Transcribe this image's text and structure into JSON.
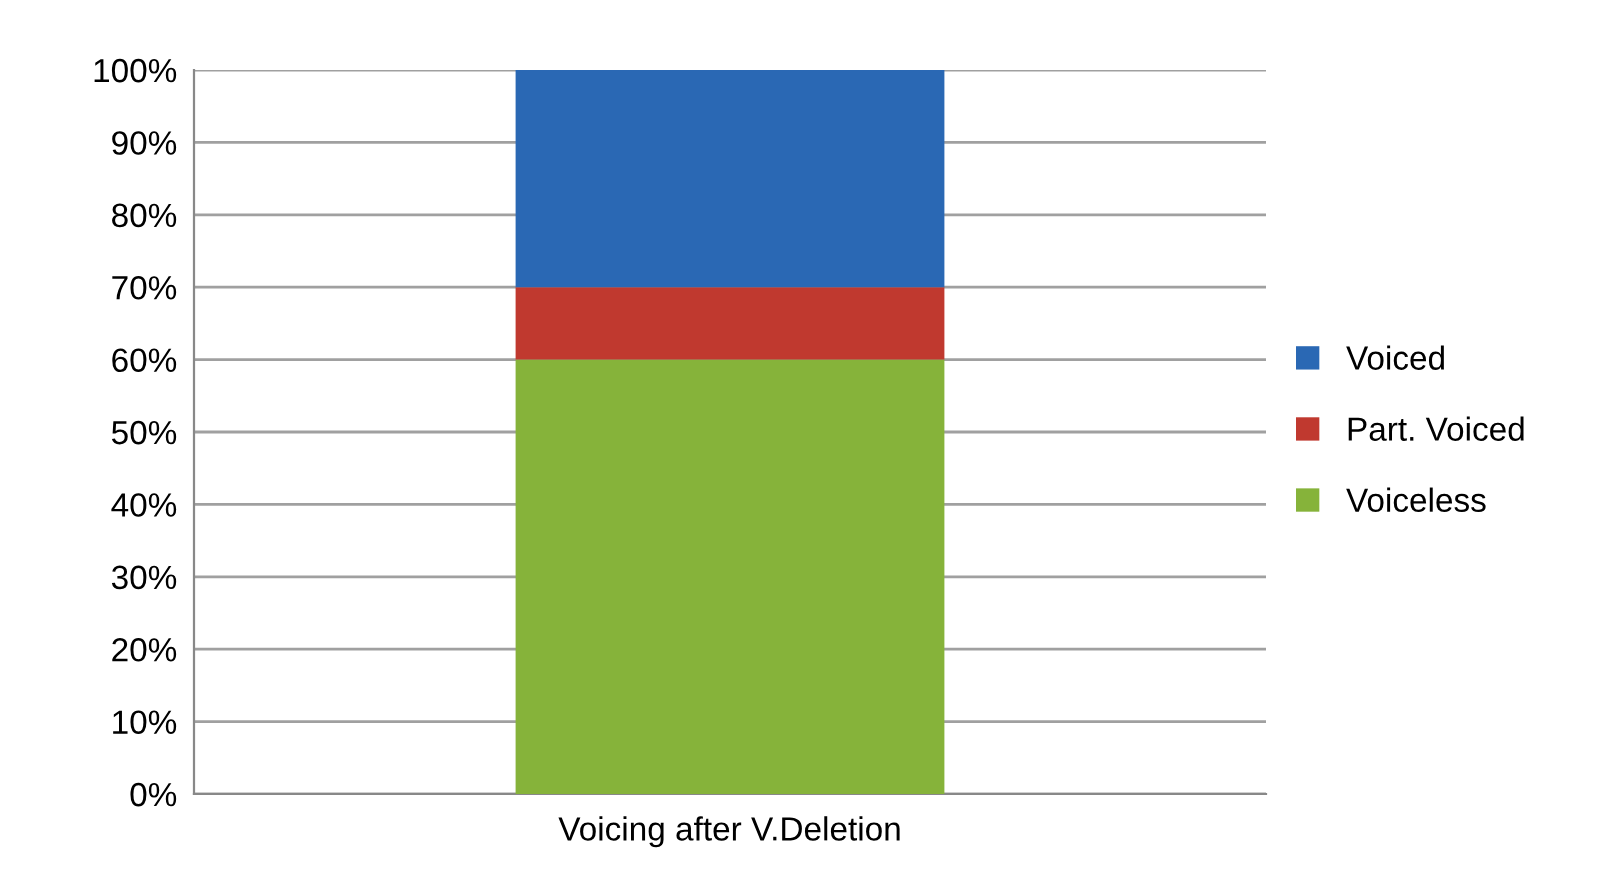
{
  "chart_data": {
    "type": "bar",
    "stacked": true,
    "categories": [
      "Voicing after V.Deletion"
    ],
    "series": [
      {
        "name": "Voiceless",
        "color": "#86b33a",
        "values": [
          60
        ]
      },
      {
        "name": "Part. Voiced",
        "color": "#c0392f",
        "values": [
          10
        ]
      },
      {
        "name": "Voiced",
        "color": "#2a68b4",
        "values": [
          30
        ]
      }
    ],
    "ylim": [
      0,
      100
    ],
    "yticks": [
      {
        "value": 0,
        "label": "0%"
      },
      {
        "value": 10,
        "label": "10%"
      },
      {
        "value": 20,
        "label": "20%"
      },
      {
        "value": 30,
        "label": "30%"
      },
      {
        "value": 40,
        "label": "40%"
      },
      {
        "value": 50,
        "label": "50%"
      },
      {
        "value": 60,
        "label": "60%"
      },
      {
        "value": 70,
        "label": "70%"
      },
      {
        "value": 80,
        "label": "80%"
      },
      {
        "value": 90,
        "label": "90%"
      },
      {
        "value": 100,
        "label": "100%"
      }
    ],
    "grid": "y",
    "legend": "right"
  }
}
